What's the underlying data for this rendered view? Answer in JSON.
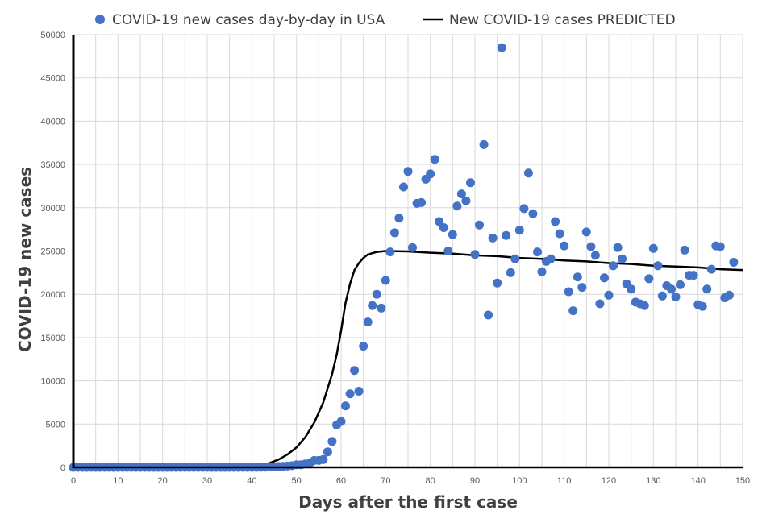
{
  "chart_data": {
    "type": "scatter",
    "xlabel": "Days after the first case",
    "ylabel": "COVID-19 new cases",
    "xlim": [
      0,
      150
    ],
    "ylim": [
      0,
      50000
    ],
    "xticks": [
      0,
      10,
      20,
      30,
      40,
      50,
      60,
      70,
      80,
      90,
      100,
      110,
      120,
      130,
      140,
      150
    ],
    "yticks": [
      0,
      5000,
      10000,
      15000,
      20000,
      25000,
      30000,
      35000,
      40000,
      45000,
      50000
    ],
    "grid": true,
    "legend_position": "top",
    "series": [
      {
        "name": "COVID-19 new cases day-by-day in USA",
        "kind": "scatter",
        "color": "#4472c4",
        "points": [
          [
            0,
            0
          ],
          [
            1,
            0
          ],
          [
            2,
            0
          ],
          [
            3,
            0
          ],
          [
            4,
            0
          ],
          [
            5,
            0
          ],
          [
            6,
            0
          ],
          [
            7,
            0
          ],
          [
            8,
            0
          ],
          [
            9,
            0
          ],
          [
            10,
            0
          ],
          [
            11,
            0
          ],
          [
            12,
            0
          ],
          [
            13,
            0
          ],
          [
            14,
            0
          ],
          [
            15,
            0
          ],
          [
            16,
            0
          ],
          [
            17,
            0
          ],
          [
            18,
            0
          ],
          [
            19,
            0
          ],
          [
            20,
            0
          ],
          [
            21,
            0
          ],
          [
            22,
            0
          ],
          [
            23,
            0
          ],
          [
            24,
            0
          ],
          [
            25,
            0
          ],
          [
            26,
            0
          ],
          [
            27,
            0
          ],
          [
            28,
            0
          ],
          [
            29,
            0
          ],
          [
            30,
            0
          ],
          [
            31,
            0
          ],
          [
            32,
            0
          ],
          [
            33,
            0
          ],
          [
            34,
            0
          ],
          [
            35,
            0
          ],
          [
            36,
            0
          ],
          [
            37,
            0
          ],
          [
            38,
            0
          ],
          [
            39,
            0
          ],
          [
            40,
            0
          ],
          [
            41,
            0
          ],
          [
            42,
            20
          ],
          [
            43,
            30
          ],
          [
            44,
            40
          ],
          [
            45,
            50
          ],
          [
            46,
            100
          ],
          [
            47,
            120
          ],
          [
            48,
            150
          ],
          [
            49,
            200
          ],
          [
            50,
            300
          ],
          [
            51,
            300
          ],
          [
            52,
            400
          ],
          [
            53,
            500
          ],
          [
            54,
            800
          ],
          [
            55,
            800
          ],
          [
            56,
            900
          ],
          [
            57,
            1800
          ],
          [
            58,
            3000
          ],
          [
            59,
            4900
          ],
          [
            60,
            5300
          ],
          [
            61,
            7100
          ],
          [
            62,
            8500
          ],
          [
            63,
            11200
          ],
          [
            64,
            8800
          ],
          [
            65,
            14000
          ],
          [
            66,
            16800
          ],
          [
            67,
            18700
          ],
          [
            68,
            20000
          ],
          [
            69,
            18400
          ],
          [
            70,
            21600
          ],
          [
            71,
            24900
          ],
          [
            72,
            27100
          ],
          [
            73,
            28800
          ],
          [
            74,
            32400
          ],
          [
            75,
            34200
          ],
          [
            76,
            25400
          ],
          [
            77,
            30500
          ],
          [
            78,
            30600
          ],
          [
            79,
            33300
          ],
          [
            80,
            33900
          ],
          [
            81,
            35600
          ],
          [
            82,
            28400
          ],
          [
            83,
            27700
          ],
          [
            84,
            25000
          ],
          [
            85,
            26900
          ],
          [
            86,
            30200
          ],
          [
            87,
            31600
          ],
          [
            88,
            30800
          ],
          [
            89,
            32900
          ],
          [
            90,
            24600
          ],
          [
            91,
            28000
          ],
          [
            92,
            37300
          ],
          [
            93,
            17600
          ],
          [
            94,
            26500
          ],
          [
            95,
            21300
          ],
          [
            96,
            48500
          ],
          [
            97,
            26800
          ],
          [
            98,
            22500
          ],
          [
            99,
            24100
          ],
          [
            100,
            27400
          ],
          [
            101,
            29900
          ],
          [
            102,
            34000
          ],
          [
            103,
            29300
          ],
          [
            104,
            24900
          ],
          [
            105,
            22600
          ],
          [
            106,
            23800
          ],
          [
            107,
            24100
          ],
          [
            108,
            28400
          ],
          [
            109,
            27000
          ],
          [
            110,
            25600
          ],
          [
            111,
            20300
          ],
          [
            112,
            18100
          ],
          [
            113,
            22000
          ],
          [
            114,
            20800
          ],
          [
            115,
            27200
          ],
          [
            116,
            25500
          ],
          [
            117,
            24500
          ],
          [
            118,
            18900
          ],
          [
            119,
            21900
          ],
          [
            120,
            19900
          ],
          [
            121,
            23300
          ],
          [
            122,
            25400
          ],
          [
            123,
            24100
          ],
          [
            124,
            21200
          ],
          [
            125,
            20600
          ],
          [
            126,
            19100
          ],
          [
            127,
            18900
          ],
          [
            128,
            18700
          ],
          [
            129,
            21800
          ],
          [
            130,
            25300
          ],
          [
            131,
            23300
          ],
          [
            132,
            19800
          ],
          [
            133,
            21000
          ],
          [
            134,
            20600
          ],
          [
            135,
            19700
          ],
          [
            136,
            21100
          ],
          [
            137,
            25100
          ],
          [
            138,
            22200
          ],
          [
            139,
            22200
          ],
          [
            140,
            18800
          ],
          [
            141,
            18600
          ],
          [
            142,
            20600
          ],
          [
            143,
            22900
          ],
          [
            144,
            25600
          ],
          [
            145,
            25500
          ],
          [
            146,
            19600
          ],
          [
            147,
            19900
          ],
          [
            148,
            23700
          ]
        ]
      },
      {
        "name": "New COVID-19 cases PREDICTED",
        "kind": "line",
        "color": "#000000",
        "points": [
          [
            0,
            0
          ],
          [
            40,
            0
          ],
          [
            42,
            200
          ],
          [
            44,
            500
          ],
          [
            46,
            900
          ],
          [
            48,
            1500
          ],
          [
            50,
            2300
          ],
          [
            52,
            3500
          ],
          [
            54,
            5200
          ],
          [
            56,
            7500
          ],
          [
            58,
            10800
          ],
          [
            59,
            13000
          ],
          [
            60,
            15800
          ],
          [
            61,
            19000
          ],
          [
            62,
            21200
          ],
          [
            63,
            22800
          ],
          [
            64,
            23600
          ],
          [
            65,
            24200
          ],
          [
            66,
            24600
          ],
          [
            68,
            24900
          ],
          [
            70,
            25000
          ],
          [
            75,
            24950
          ],
          [
            80,
            24800
          ],
          [
            85,
            24700
          ],
          [
            90,
            24500
          ],
          [
            95,
            24400
          ],
          [
            100,
            24200
          ],
          [
            105,
            24100
          ],
          [
            110,
            23900
          ],
          [
            115,
            23800
          ],
          [
            120,
            23600
          ],
          [
            125,
            23500
          ],
          [
            130,
            23300
          ],
          [
            135,
            23200
          ],
          [
            140,
            23100
          ],
          [
            145,
            22900
          ],
          [
            150,
            22800
          ]
        ]
      }
    ]
  }
}
